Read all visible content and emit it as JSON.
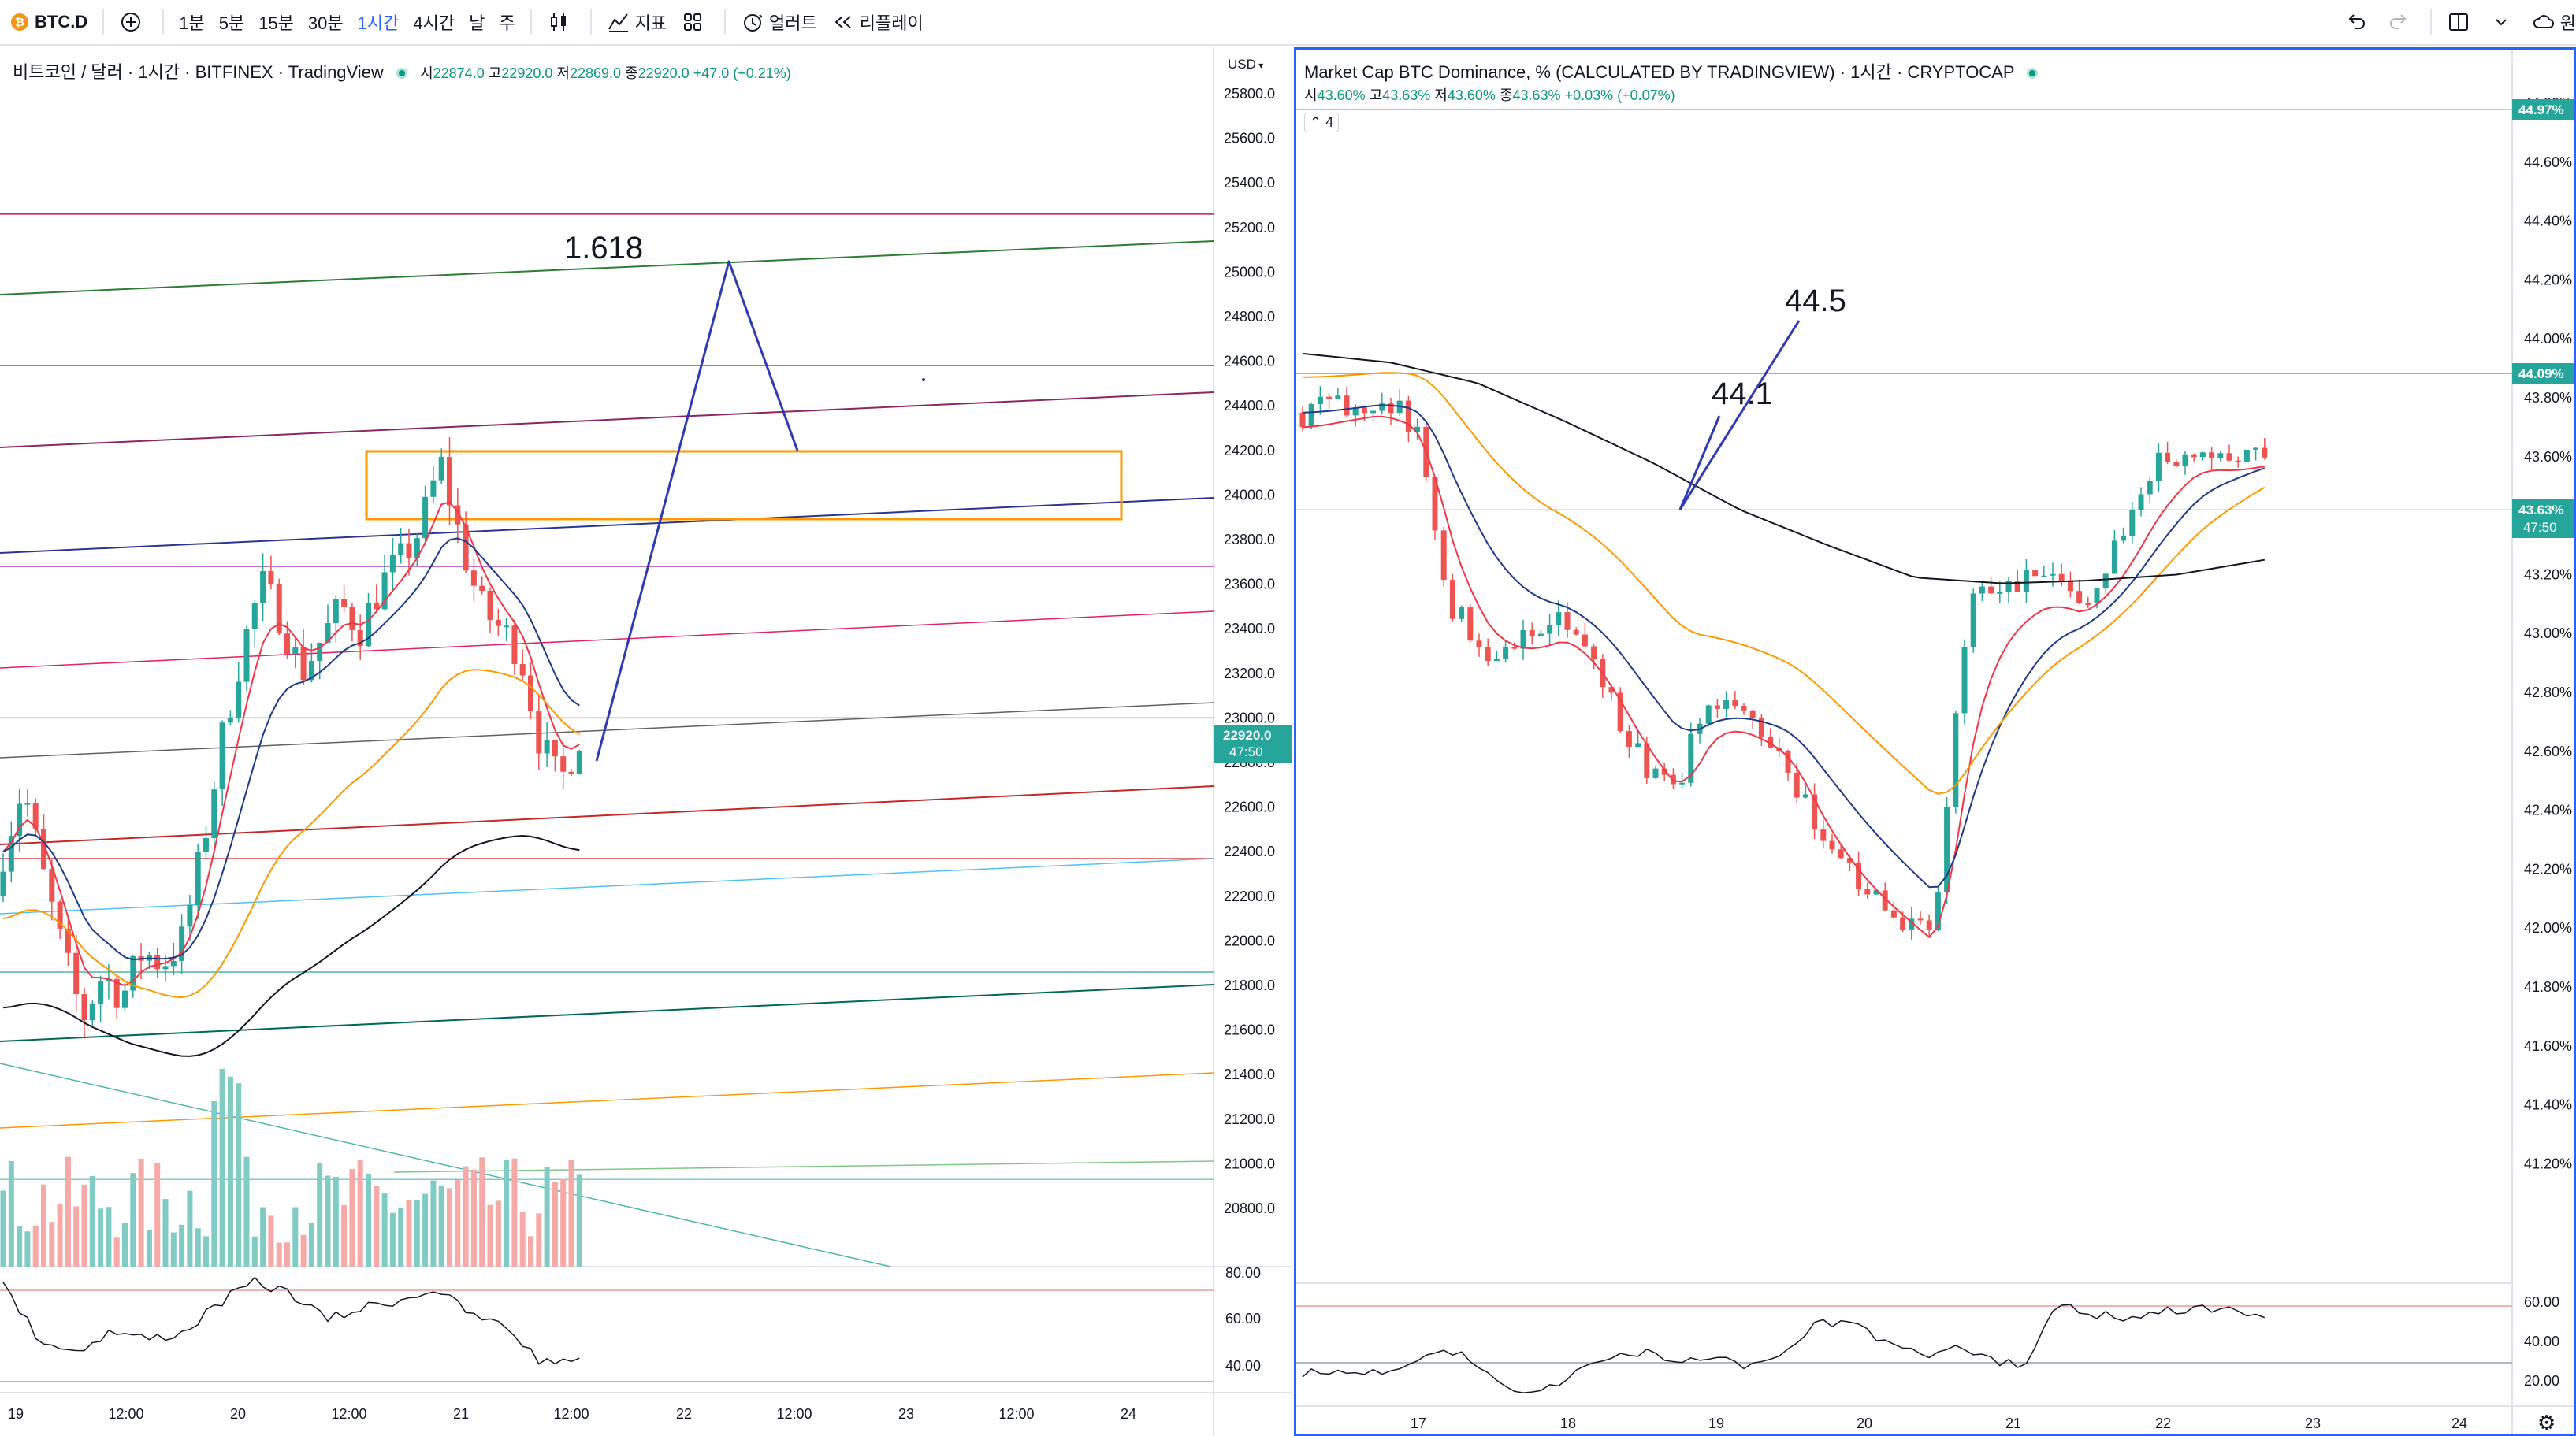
{
  "toolbar": {
    "symbol": "BTC.D",
    "intervals": [
      "1분",
      "5분",
      "15분",
      "30분",
      "1시간",
      "4시간",
      "날",
      "주"
    ],
    "active_interval": "1시간",
    "indicators_label": "지표",
    "alert_label": "얼러트",
    "replay_label": "리플레이",
    "right_cut_label": "원"
  },
  "left_chart": {
    "legend_title": "비트코인 / 달러 · 1시간 · BITFINEX · TradingView",
    "ohlc": {
      "open_label": "시",
      "open": "22874.0",
      "high_label": "고",
      "high": "22920.0",
      "low_label": "저",
      "low": "22869.0",
      "close_label": "종",
      "close": "22920.0",
      "change": "+47.0 (+0.21%)"
    },
    "currency": "USD",
    "price_ticks": [
      "25800.0",
      "25600.0",
      "25400.0",
      "25200.0",
      "25000.0",
      "24800.0",
      "24600.0",
      "24400.0",
      "24200.0",
      "24000.0",
      "23800.0",
      "23600.0",
      "23400.0",
      "23200.0",
      "23000.0",
      "22800.0",
      "22600.0",
      "22400.0",
      "22200.0",
      "22000.0",
      "21800.0",
      "21600.0",
      "21400.0",
      "21200.0",
      "21000.0",
      "20800.0"
    ],
    "last_price": "22920.0",
    "countdown": "47:50",
    "rsi_ticks": [
      "80.00",
      "60.00",
      "40.00"
    ],
    "time_ticks": [
      "19",
      "12:00",
      "20",
      "12:00",
      "21",
      "12:00",
      "22",
      "12:00",
      "23",
      "12:00",
      "24"
    ],
    "annotation_fib": "1.618"
  },
  "right_chart": {
    "legend_title": "Market Cap BTC Dominance, % (CALCULATED BY TRADINGVIEW) · 1시간 · CRYPTOCAP",
    "ohlc": {
      "open_label": "시",
      "open": "43.60%",
      "high_label": "고",
      "high": "43.63%",
      "low_label": "저",
      "low": "43.60%",
      "close_label": "종",
      "close": "43.63%",
      "change": "+0.03% (+0.07%)"
    },
    "indicator_count": "4",
    "price_ticks": [
      "44.80%",
      "44.60%",
      "44.40%",
      "44.20%",
      "44.00%",
      "43.80%",
      "43.60%",
      "43.40%",
      "43.20%",
      "43.00%",
      "42.80%",
      "42.60%",
      "42.40%",
      "42.20%",
      "42.00%",
      "41.80%",
      "41.60%",
      "41.40%",
      "41.20%"
    ],
    "top_tag": "44.97%",
    "level_tag": "44.09%",
    "last_price": "43.63%",
    "countdown": "47:50",
    "rsi_ticks": [
      "60.00",
      "40.00",
      "20.00"
    ],
    "time_ticks": [
      "17",
      "18",
      "19",
      "20",
      "21",
      "22",
      "23",
      "24"
    ],
    "annotation_a": "44.1",
    "annotation_b": "44.5"
  },
  "colors": {
    "up": "#26a69a",
    "down": "#ef5350",
    "accent": "#2962ff",
    "ema_red": "#f23645",
    "ema_blue": "#1e3a8a",
    "ema_orange": "#ff9800",
    "ema_black": "#131722"
  }
}
